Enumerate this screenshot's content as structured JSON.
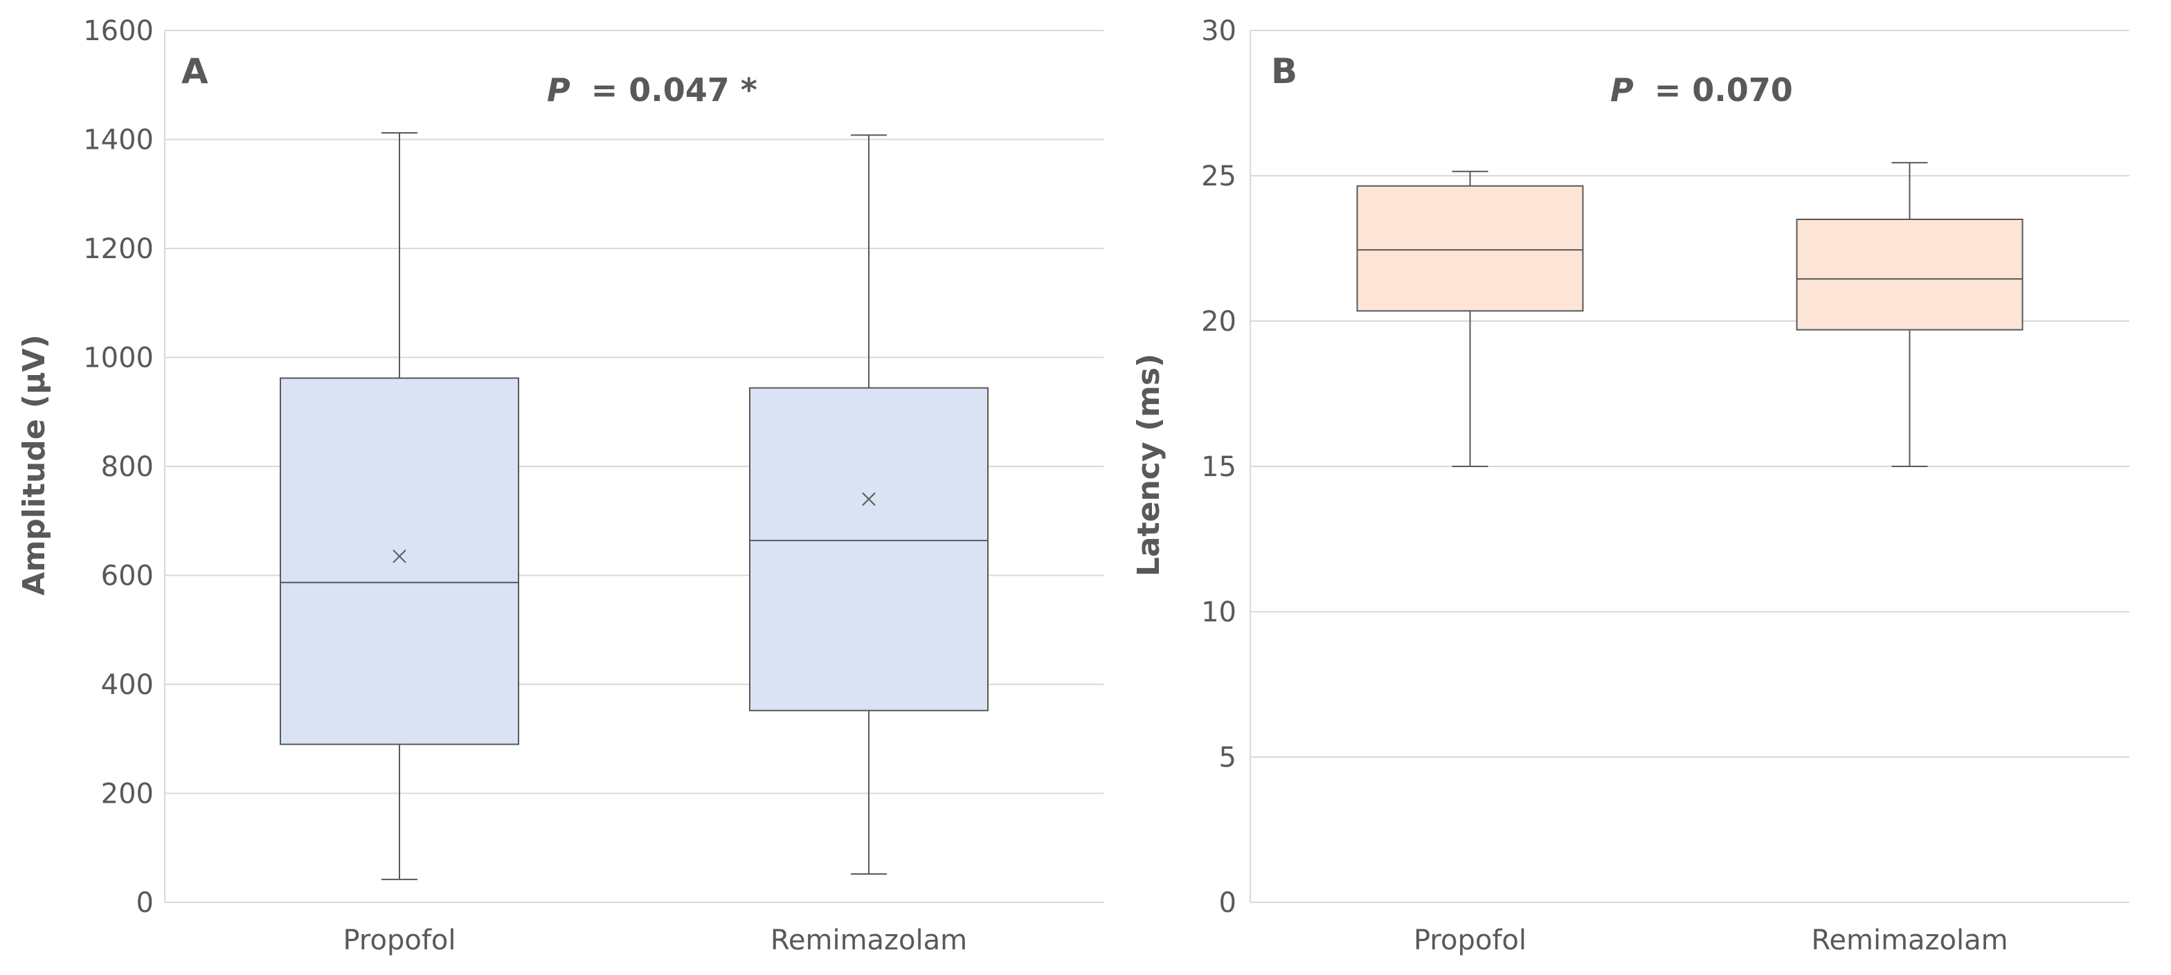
{
  "chart_data": [
    {
      "type": "box",
      "panel_label": "A",
      "annotation": {
        "prefix": "P",
        "text": "= 0.047 *"
      },
      "ylabel": "Amplitude (μV)",
      "xlabel": "",
      "ylim": [
        0,
        1600
      ],
      "yticks": [
        0,
        200,
        400,
        600,
        800,
        1000,
        1200,
        1400,
        1600
      ],
      "grid": true,
      "box_color": "#dae3f3",
      "categories": [
        "Propofol",
        "Remimazolam"
      ],
      "boxes": [
        {
          "category": "Propofol",
          "min": 42,
          "q1": 290,
          "median": 587,
          "q3": 962,
          "max": 1412,
          "mean": 635
        },
        {
          "category": "Remimazolam",
          "min": 52,
          "q1": 352,
          "median": 664,
          "q3": 944,
          "max": 1408,
          "mean": 740
        }
      ]
    },
    {
      "type": "box",
      "panel_label": "B",
      "annotation": {
        "prefix": "P",
        "text": "= 0.070"
      },
      "ylabel": "Latency (ms)",
      "xlabel": "",
      "ylim": [
        0,
        30
      ],
      "yticks": [
        0,
        5,
        10,
        15,
        20,
        25,
        30
      ],
      "grid": true,
      "box_color": "#fce4d6",
      "categories": [
        "Propofol",
        "Remimazolam"
      ],
      "boxes": [
        {
          "category": "Propofol",
          "min": 15.0,
          "q1": 20.35,
          "median": 22.45,
          "q3": 24.65,
          "max": 25.15
        },
        {
          "category": "Remimazolam",
          "min": 15.0,
          "q1": 19.7,
          "median": 21.45,
          "q3": 23.5,
          "max": 25.45
        }
      ]
    }
  ]
}
